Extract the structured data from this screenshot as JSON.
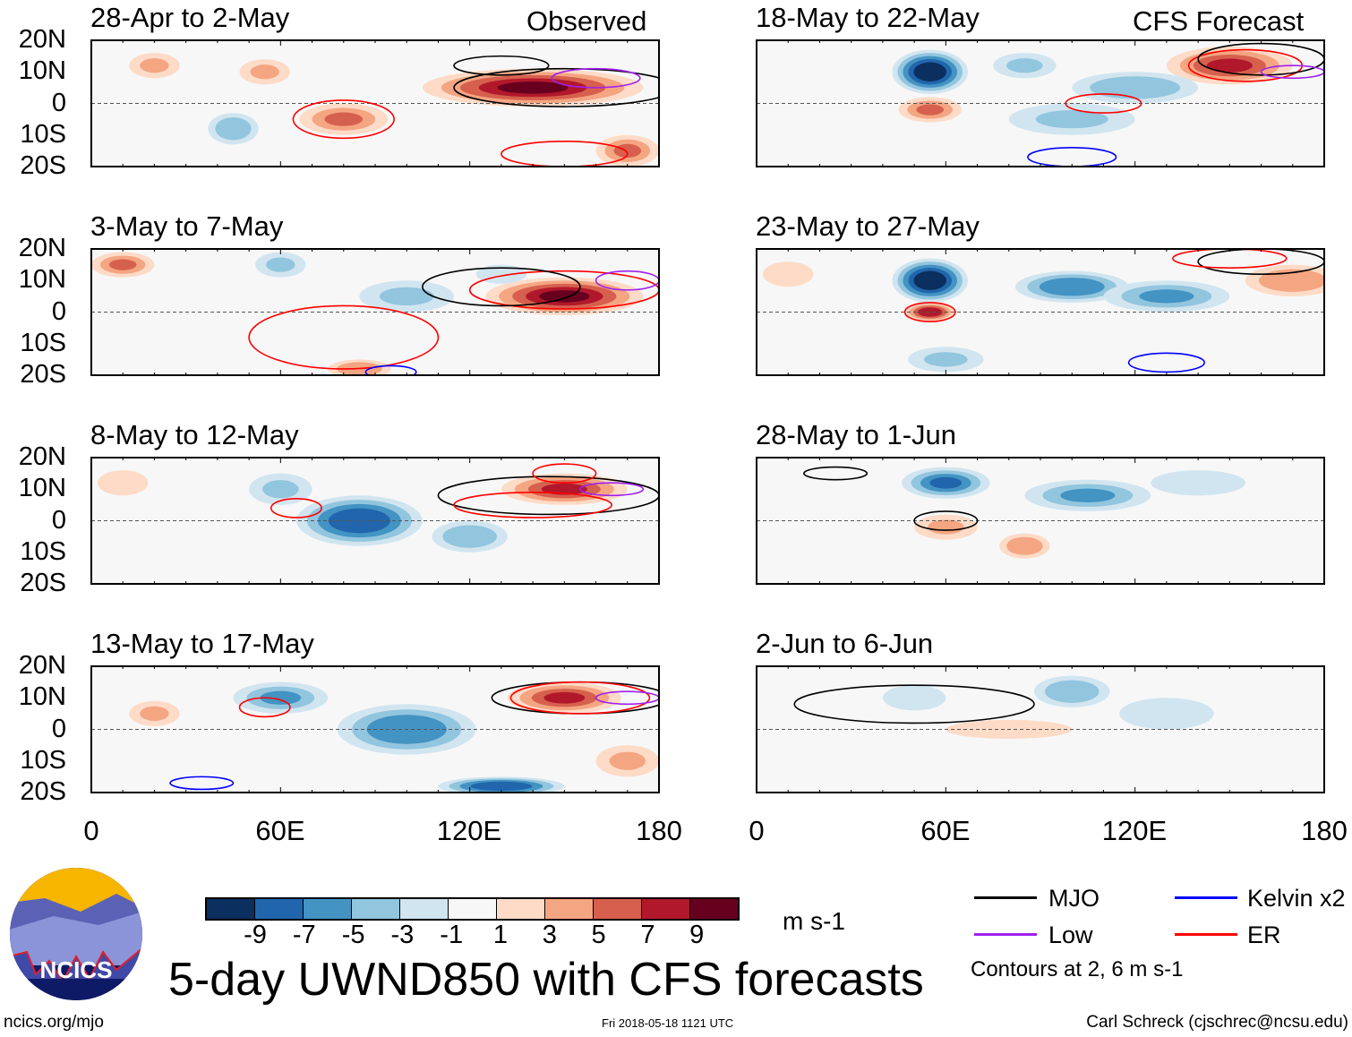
{
  "colors": [
    "#0b2f5e",
    "#2166ac",
    "#4393c3",
    "#92c5de",
    "#d1e5f0",
    "#f7f7f7",
    "#fddbc7",
    "#f4a582",
    "#d6604d",
    "#b2182b",
    "#67001f"
  ],
  "contour_colors": {
    "MJO": "#000000",
    "Kelvin": "#0000ff",
    "Low": "#a020f0",
    "ER": "#ff0000"
  },
  "column_labels": {
    "left": "Observed",
    "right": "CFS Forecast"
  },
  "y_tick_labels": [
    "20N",
    "10N",
    "0",
    "10S",
    "20S"
  ],
  "x_tick_labels": [
    "0",
    "60E",
    "120E",
    "180"
  ],
  "colorbar": {
    "ticks": [
      "-9",
      "-7",
      "-5",
      "-3",
      "-1",
      "1",
      "3",
      "5",
      "7",
      "9"
    ],
    "units": "m s-1"
  },
  "title": "5-day UWND850 with CFS forecasts",
  "legend": {
    "mjo": "MJO",
    "kelvin": "Kelvin x2",
    "low": "Low",
    "er": "ER",
    "note": "Contours at 2, 6 m s-1"
  },
  "logo_text": "NCICS",
  "footer": {
    "url": "ncics.org/mjo",
    "timestamp": "Fri 2018-05-18 1121 UTC",
    "author": "Carl Schreck (cjschrec@ncsu.edu)"
  },
  "chart_data": {
    "type": "heatmap",
    "variable": "850-hPa zonal wind anomaly (m s-1)",
    "lon_range": [
      0,
      180
    ],
    "lat_range": [
      -20,
      20
    ],
    "panels": [
      {
        "title": "28-Apr to 2-May",
        "source": "Observed",
        "features": [
          [
            140,
            5,
            35,
            6,
            9
          ],
          [
            80,
            -5,
            14,
            5,
            5
          ],
          [
            55,
            10,
            8,
            4,
            3
          ],
          [
            45,
            -8,
            8,
            5,
            -4
          ],
          [
            170,
            -15,
            10,
            5,
            5
          ],
          [
            20,
            12,
            8,
            4,
            3
          ]
        ],
        "contours": [
          [
            "ER",
            80,
            -5,
            16,
            6
          ],
          [
            "MJO",
            150,
            5,
            35,
            6
          ],
          [
            "Low",
            160,
            8,
            14,
            3
          ],
          [
            "ER",
            150,
            -16,
            20,
            4
          ],
          [
            "MJO",
            130,
            12,
            15,
            3
          ]
        ]
      },
      {
        "title": "3-May to 7-May",
        "source": "Observed",
        "features": [
          [
            150,
            5,
            25,
            6,
            9
          ],
          [
            10,
            15,
            10,
            4,
            5
          ],
          [
            100,
            5,
            15,
            5,
            -3
          ],
          [
            60,
            15,
            8,
            4,
            -3
          ],
          [
            85,
            -18,
            10,
            3,
            4
          ],
          [
            130,
            12,
            8,
            3,
            -2
          ]
        ],
        "contours": [
          [
            "ER",
            150,
            7,
            30,
            6
          ],
          [
            "MJO",
            130,
            8,
            25,
            6
          ],
          [
            "Low",
            170,
            10,
            10,
            3
          ],
          [
            "ER",
            80,
            -8,
            30,
            10
          ],
          [
            "Kelvin",
            95,
            -19,
            8,
            2
          ]
        ]
      },
      {
        "title": "8-May to 12-May",
        "source": "Observed",
        "features": [
          [
            85,
            0,
            20,
            8,
            -8
          ],
          [
            150,
            10,
            20,
            5,
            7
          ],
          [
            120,
            -5,
            12,
            5,
            -4
          ],
          [
            60,
            10,
            10,
            5,
            -3
          ],
          [
            10,
            12,
            8,
            4,
            2
          ]
        ],
        "contours": [
          [
            "ER",
            65,
            4,
            8,
            3
          ],
          [
            "MJO",
            145,
            8,
            35,
            6
          ],
          [
            "ER",
            140,
            5,
            25,
            4
          ],
          [
            "Low",
            165,
            10,
            10,
            2
          ],
          [
            "ER",
            150,
            15,
            10,
            3
          ]
        ]
      },
      {
        "title": "13-May to 17-May",
        "source": "Observed",
        "features": [
          [
            100,
            0,
            22,
            8,
            -6
          ],
          [
            60,
            10,
            15,
            5,
            -5
          ],
          [
            130,
            -18,
            20,
            3,
            -8
          ],
          [
            150,
            10,
            18,
            5,
            7
          ],
          [
            170,
            -10,
            10,
            5,
            3
          ],
          [
            20,
            5,
            8,
            4,
            3
          ]
        ],
        "contours": [
          [
            "MJO",
            155,
            10,
            28,
            5
          ],
          [
            "ER",
            155,
            10,
            22,
            5
          ],
          [
            "Low",
            170,
            10,
            10,
            2
          ],
          [
            "ER",
            55,
            7,
            8,
            3
          ],
          [
            "Kelvin",
            35,
            -17,
            10,
            2
          ]
        ]
      },
      {
        "title": "18-May to 22-May",
        "source": "CFS Forecast",
        "features": [
          [
            55,
            10,
            12,
            7,
            -10
          ],
          [
            55,
            -2,
            10,
            4,
            5
          ],
          [
            150,
            12,
            20,
            6,
            7
          ],
          [
            120,
            5,
            20,
            5,
            -4
          ],
          [
            100,
            -5,
            20,
            5,
            -3
          ],
          [
            85,
            12,
            10,
            4,
            -3
          ]
        ],
        "contours": [
          [
            "ER",
            155,
            12,
            18,
            5
          ],
          [
            "MJO",
            160,
            14,
            20,
            5
          ],
          [
            "Low",
            170,
            10,
            10,
            2
          ],
          [
            "ER",
            110,
            0,
            12,
            3
          ],
          [
            "Kelvin",
            100,
            -17,
            14,
            3
          ]
        ]
      },
      {
        "title": "23-May to 27-May",
        "source": "CFS Forecast",
        "features": [
          [
            55,
            10,
            12,
            7,
            -10
          ],
          [
            55,
            0,
            8,
            3,
            8
          ],
          [
            100,
            8,
            18,
            5,
            -6
          ],
          [
            130,
            5,
            20,
            5,
            -5
          ],
          [
            170,
            10,
            15,
            5,
            4
          ],
          [
            60,
            -15,
            12,
            4,
            -3
          ],
          [
            10,
            12,
            8,
            4,
            2
          ]
        ],
        "contours": [
          [
            "ER",
            55,
            0,
            8,
            3
          ],
          [
            "MJO",
            160,
            16,
            20,
            4
          ],
          [
            "ER",
            150,
            17,
            18,
            3
          ],
          [
            "Kelvin",
            130,
            -16,
            12,
            3
          ]
        ]
      },
      {
        "title": "28-May to 1-Jun",
        "source": "CFS Forecast",
        "features": [
          [
            60,
            12,
            14,
            5,
            -7
          ],
          [
            105,
            8,
            20,
            5,
            -5
          ],
          [
            85,
            -8,
            8,
            4,
            4
          ],
          [
            60,
            -2,
            10,
            4,
            3
          ],
          [
            140,
            12,
            15,
            4,
            -2
          ]
        ],
        "contours": [
          [
            "MJO",
            60,
            0,
            10,
            3
          ],
          [
            "MJO",
            25,
            15,
            10,
            2
          ]
        ]
      },
      {
        "title": "2-Jun to 6-Jun",
        "source": "CFS Forecast",
        "features": [
          [
            100,
            12,
            12,
            5,
            -4
          ],
          [
            80,
            0,
            20,
            3,
            2
          ],
          [
            50,
            10,
            10,
            4,
            -2
          ],
          [
            130,
            5,
            15,
            5,
            -2
          ]
        ],
        "contours": [
          [
            "MJO",
            50,
            8,
            38,
            6
          ]
        ]
      }
    ]
  }
}
